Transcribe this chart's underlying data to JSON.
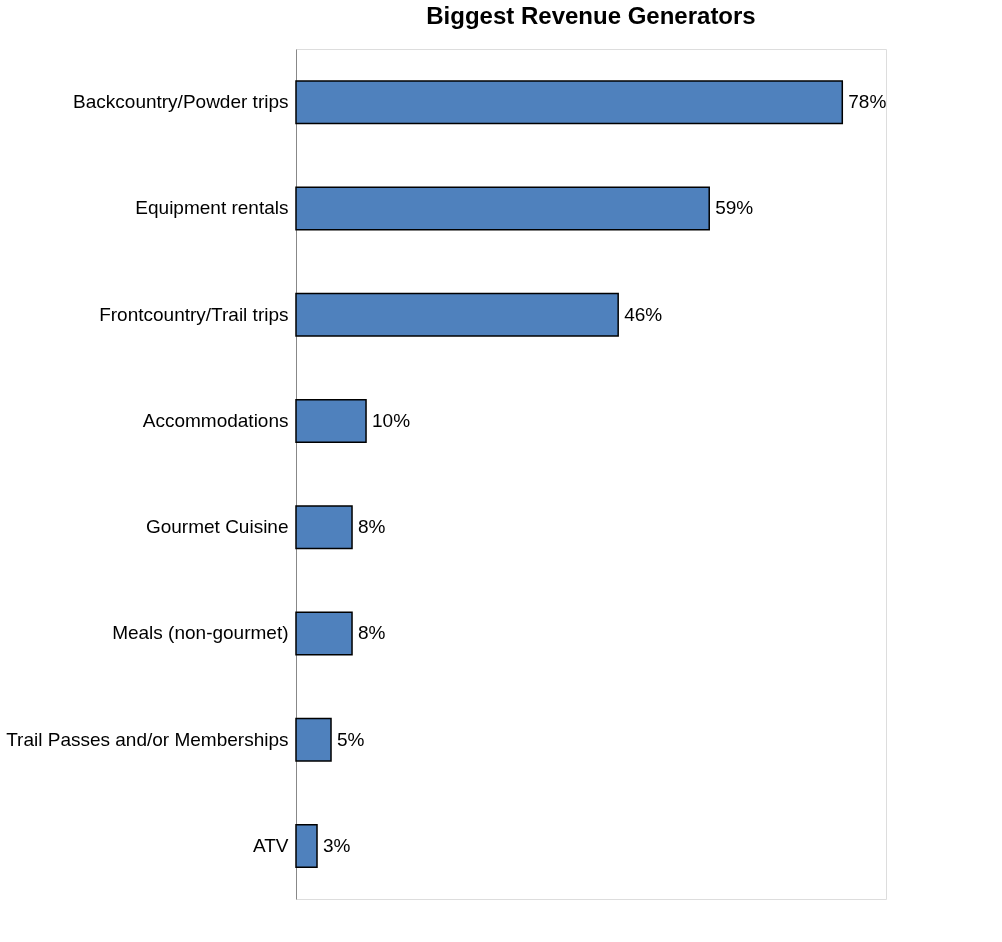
{
  "chart_data": {
    "type": "bar",
    "orientation": "horizontal",
    "title": "Biggest Revenue Generators",
    "categories": [
      "Backcountry/Powder trips",
      "Equipment rentals",
      "Frontcountry/Trail trips",
      "Accommodations",
      "Gourmet Cuisine",
      "Meals (non-gourmet)",
      "Trail Passes and/or Memberships",
      "ATV"
    ],
    "values": [
      78,
      59,
      46,
      10,
      8,
      8,
      5,
      3
    ],
    "value_labels": [
      "78%",
      "59%",
      "46%",
      "10%",
      "8%",
      "8%",
      "5%",
      "3%"
    ],
    "color": "#4f81bd"
  }
}
